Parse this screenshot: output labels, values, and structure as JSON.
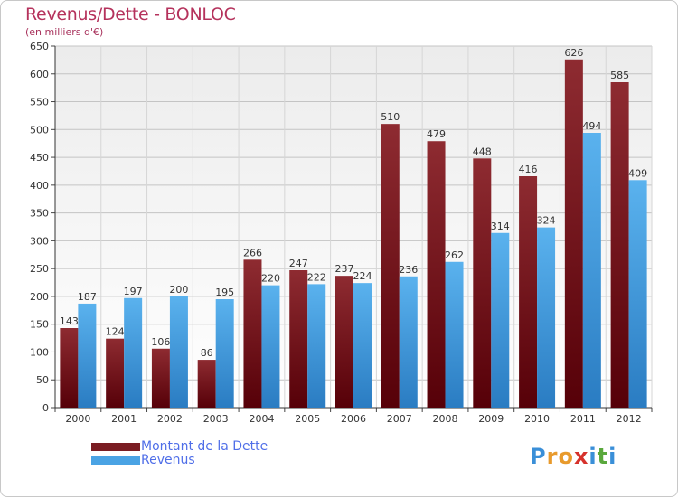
{
  "header": {
    "title": "Revenus/Dette - BONLOC",
    "subtitle": "(en milliers d'€)"
  },
  "colors": {
    "debt": "#7a1c22",
    "revenue": "#4aa3e4",
    "title": "#b5325c",
    "legend_text": "#4f6ee8"
  },
  "chart_data": {
    "type": "bar",
    "title": "Revenus/Dette - BONLOC",
    "subtitle": "(en milliers d'€)",
    "xlabel": "",
    "ylabel": "",
    "ylim": [
      0,
      650
    ],
    "ytick_step": 50,
    "grid": true,
    "legend_position": "bottom-left",
    "categories": [
      "2000",
      "2001",
      "2002",
      "2003",
      "2004",
      "2005",
      "2006",
      "2007",
      "2008",
      "2009",
      "2010",
      "2011",
      "2012"
    ],
    "series": [
      {
        "name": "Montant de la Dette",
        "values": [
          143,
          124,
          106,
          86,
          266,
          247,
          237,
          510,
          479,
          448,
          416,
          626,
          585
        ]
      },
      {
        "name": "Revenus",
        "values": [
          187,
          197,
          200,
          195,
          220,
          222,
          224,
          236,
          262,
          314,
          324,
          494,
          409
        ]
      }
    ]
  },
  "legend": {
    "items": [
      {
        "label": "Montant de la Dette"
      },
      {
        "label": "Revenus"
      }
    ]
  },
  "logo": {
    "letters": [
      "P",
      "r",
      "o",
      "x",
      "i",
      "t",
      "i"
    ],
    "colors": [
      "#3a8fd8",
      "#e89a2c",
      "#e89a2c",
      "#d6322c",
      "#3a8fd8",
      "#5aa83c",
      "#3a8fd8"
    ]
  }
}
